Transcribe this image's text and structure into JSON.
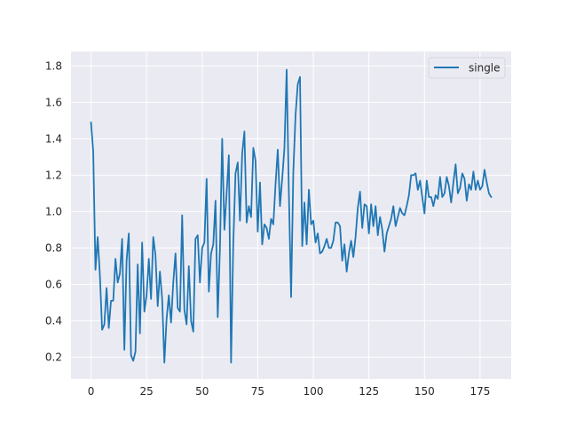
{
  "chart_data": {
    "type": "line",
    "title": "",
    "xlabel": "",
    "ylabel": "",
    "xlim": [
      -9,
      189
    ],
    "ylim": [
      0.08,
      1.88
    ],
    "xticks": [
      0,
      25,
      50,
      75,
      100,
      125,
      150,
      175
    ],
    "yticks": [
      0.2,
      0.4,
      0.6,
      0.8,
      1.0,
      1.2,
      1.4,
      1.6,
      1.8
    ],
    "grid": true,
    "legend_position": "top-right",
    "colors": {
      "background": "#eaeaf2",
      "grid": "#ffffff",
      "series": "#1f77b4"
    },
    "series": [
      {
        "name": "single",
        "x": [
          0,
          1,
          2,
          3,
          4,
          5,
          6,
          7,
          8,
          9,
          10,
          11,
          12,
          13,
          14,
          15,
          16,
          17,
          18,
          19,
          20,
          21,
          22,
          23,
          24,
          25,
          26,
          27,
          28,
          29,
          30,
          31,
          32,
          33,
          34,
          35,
          36,
          37,
          38,
          39,
          40,
          41,
          42,
          43,
          44,
          45,
          46,
          47,
          48,
          49,
          50,
          51,
          52,
          53,
          54,
          55,
          56,
          57,
          58,
          59,
          60,
          61,
          62,
          63,
          64,
          65,
          66,
          67,
          68,
          69,
          70,
          71,
          72,
          73,
          74,
          75,
          76,
          77,
          78,
          79,
          80,
          81,
          82,
          83,
          84,
          85,
          86,
          87,
          88,
          89,
          90,
          91,
          92,
          93,
          94,
          95,
          96,
          97,
          98,
          99,
          100,
          101,
          102,
          103,
          104,
          105,
          106,
          107,
          108,
          109,
          110,
          111,
          112,
          113,
          114,
          115,
          116,
          117,
          118,
          119,
          120,
          121,
          122,
          123,
          124,
          125,
          126,
          127,
          128,
          129,
          130,
          131,
          132,
          133,
          134,
          135,
          136,
          137,
          138,
          139,
          140,
          141,
          142,
          143,
          144,
          145,
          146,
          147,
          148,
          149,
          150,
          151,
          152,
          153,
          154,
          155,
          156,
          157,
          158,
          159,
          160,
          161,
          162,
          163,
          164,
          165,
          166,
          167,
          168,
          169,
          170,
          171,
          172,
          173,
          174,
          175,
          176,
          177,
          178,
          179,
          180
        ],
        "values": [
          1.49,
          1.33,
          0.68,
          0.86,
          0.65,
          0.35,
          0.38,
          0.58,
          0.36,
          0.51,
          0.51,
          0.74,
          0.61,
          0.66,
          0.85,
          0.24,
          0.73,
          0.88,
          0.21,
          0.18,
          0.23,
          0.71,
          0.33,
          0.83,
          0.45,
          0.54,
          0.74,
          0.52,
          0.86,
          0.76,
          0.48,
          0.67,
          0.52,
          0.17,
          0.41,
          0.54,
          0.39,
          0.61,
          0.77,
          0.47,
          0.45,
          0.98,
          0.46,
          0.38,
          0.7,
          0.4,
          0.34,
          0.85,
          0.87,
          0.61,
          0.8,
          0.83,
          1.18,
          0.56,
          0.77,
          0.82,
          1.06,
          0.42,
          0.8,
          1.4,
          0.9,
          1.1,
          1.31,
          0.17,
          0.83,
          1.21,
          1.27,
          0.95,
          1.32,
          1.44,
          0.94,
          1.03,
          0.97,
          1.35,
          1.28,
          0.89,
          1.16,
          0.82,
          0.93,
          0.91,
          0.85,
          0.96,
          0.93,
          1.15,
          1.34,
          1.03,
          1.18,
          1.35,
          1.78,
          1.1,
          0.53,
          1.22,
          1.53,
          1.7,
          1.74,
          0.81,
          1.05,
          0.82,
          1.12,
          0.93,
          0.95,
          0.83,
          0.88,
          0.77,
          0.78,
          0.81,
          0.85,
          0.8,
          0.8,
          0.84,
          0.94,
          0.94,
          0.92,
          0.73,
          0.82,
          0.67,
          0.77,
          0.84,
          0.75,
          0.86,
          1.02,
          1.11,
          0.91,
          1.04,
          1.03,
          0.88,
          1.04,
          0.92,
          1.03,
          0.87,
          0.97,
          0.9,
          0.78,
          0.88,
          0.92,
          0.96,
          1.03,
          0.92,
          0.97,
          1.02,
          0.99,
          0.98,
          1.03,
          1.09,
          1.2,
          1.2,
          1.21,
          1.12,
          1.17,
          1.08,
          0.99,
          1.17,
          1.08,
          1.08,
          1.03,
          1.09,
          1.07,
          1.19,
          1.08,
          1.1,
          1.19,
          1.14,
          1.05,
          1.16,
          1.26,
          1.1,
          1.13,
          1.21,
          1.18,
          1.06,
          1.15,
          1.12,
          1.22,
          1.12,
          1.17,
          1.12,
          1.14,
          1.23,
          1.16,
          1.1,
          1.08
        ]
      }
    ]
  }
}
